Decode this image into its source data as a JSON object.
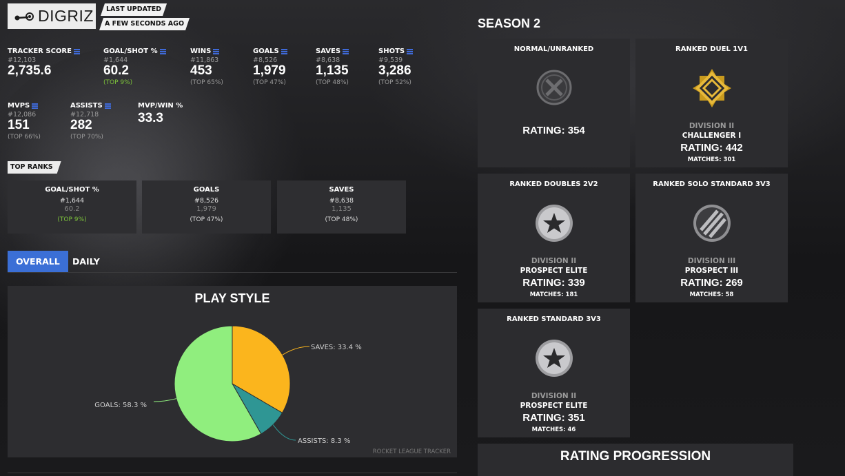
{
  "profile": {
    "name": "DIGRIZ",
    "platform_icon": "steam-icon",
    "last_updated_label": "LAST UPDATED",
    "last_updated_value": "A FEW SECONDS AGO"
  },
  "stats_row1": [
    {
      "label": "TRACKER SCORE",
      "rank": "#12,103",
      "value": "2,735.6",
      "top": ""
    },
    {
      "label": "GOAL/SHOT %",
      "rank": "#1,644",
      "value": "60.2",
      "top": "(TOP 9%)"
    },
    {
      "label": "WINS",
      "rank": "#11,863",
      "value": "453",
      "top": "(TOP 65%)"
    },
    {
      "label": "GOALS",
      "rank": "#8,526",
      "value": "1,979",
      "top": "(TOP 47%)"
    },
    {
      "label": "SAVES",
      "rank": "#8,638",
      "value": "1,135",
      "top": "(TOP 48%)"
    },
    {
      "label": "SHOTS",
      "rank": "#9,539",
      "value": "3,286",
      "top": "(TOP 52%)"
    }
  ],
  "stats_row2": [
    {
      "label": "MVPS",
      "rank": "#12,086",
      "value": "151",
      "top": "(TOP 66%)"
    },
    {
      "label": "ASSISTS",
      "rank": "#12,718",
      "value": "282",
      "top": "(TOP 70%)"
    },
    {
      "label": "MVP/WIN %",
      "rank": "",
      "value": "33.3",
      "top": ""
    }
  ],
  "top_ranks": {
    "label": "TOP RANKS",
    "cards": [
      {
        "title": "GOAL/SHOT %",
        "rank": "#1,644",
        "value": "60.2",
        "top": "(TOP 9%)"
      },
      {
        "title": "GOALS",
        "rank": "#8,526",
        "value": "1,979",
        "top": "(TOP 47%)"
      },
      {
        "title": "SAVES",
        "rank": "#8,638",
        "value": "1,135",
        "top": "(TOP 48%)"
      }
    ]
  },
  "tabs": [
    {
      "label": "OVERALL",
      "active": true
    },
    {
      "label": "DAILY",
      "active": false
    }
  ],
  "play_style": {
    "title": "PLAY STYLE",
    "credit": "ROCKET LEAGUE TRACKER"
  },
  "chart_data": {
    "type": "pie",
    "title": "PLAY STYLE",
    "slices": [
      {
        "label": "SAVES: 33.4 %",
        "value": 33.4,
        "color": "#fbb51d"
      },
      {
        "label": "ASSISTS: 8.3 %",
        "value": 8.3,
        "color": "#2f9694"
      },
      {
        "label": "GOALS: 58.3 %",
        "value": 58.3,
        "color": "#90ee7e"
      }
    ]
  },
  "season": {
    "title": "SEASON 2",
    "playlists": [
      {
        "title": "NORMAL/UNRANKED",
        "icon": "unranked-icon",
        "division": "",
        "tier": "",
        "rating": "RATING: 354",
        "matches": ""
      },
      {
        "title": "RANKED DUEL 1V1",
        "icon": "challenger-rank-icon",
        "division": "DIVISION II",
        "tier": "CHALLENGER I",
        "rating": "RATING: 442",
        "matches": "MATCHES: 301"
      },
      {
        "title": "RANKED DOUBLES 2V2",
        "icon": "prospect-elite-rank-icon",
        "division": "DIVISION II",
        "tier": "PROSPECT ELITE",
        "rating": "RATING: 339",
        "matches": "MATCHES: 181"
      },
      {
        "title": "RANKED SOLO STANDARD 3V3",
        "icon": "prospect-iii-rank-icon",
        "division": "DIVISION III",
        "tier": "PROSPECT III",
        "rating": "RATING: 269",
        "matches": "MATCHES: 58"
      },
      {
        "title": "RANKED STANDARD 3V3",
        "icon": "prospect-elite-rank-icon",
        "division": "DIVISION II",
        "tier": "PROSPECT ELITE",
        "rating": "RATING: 351",
        "matches": "MATCHES: 46"
      }
    ],
    "rating_progression_title": "RATING PROGRESSION"
  }
}
